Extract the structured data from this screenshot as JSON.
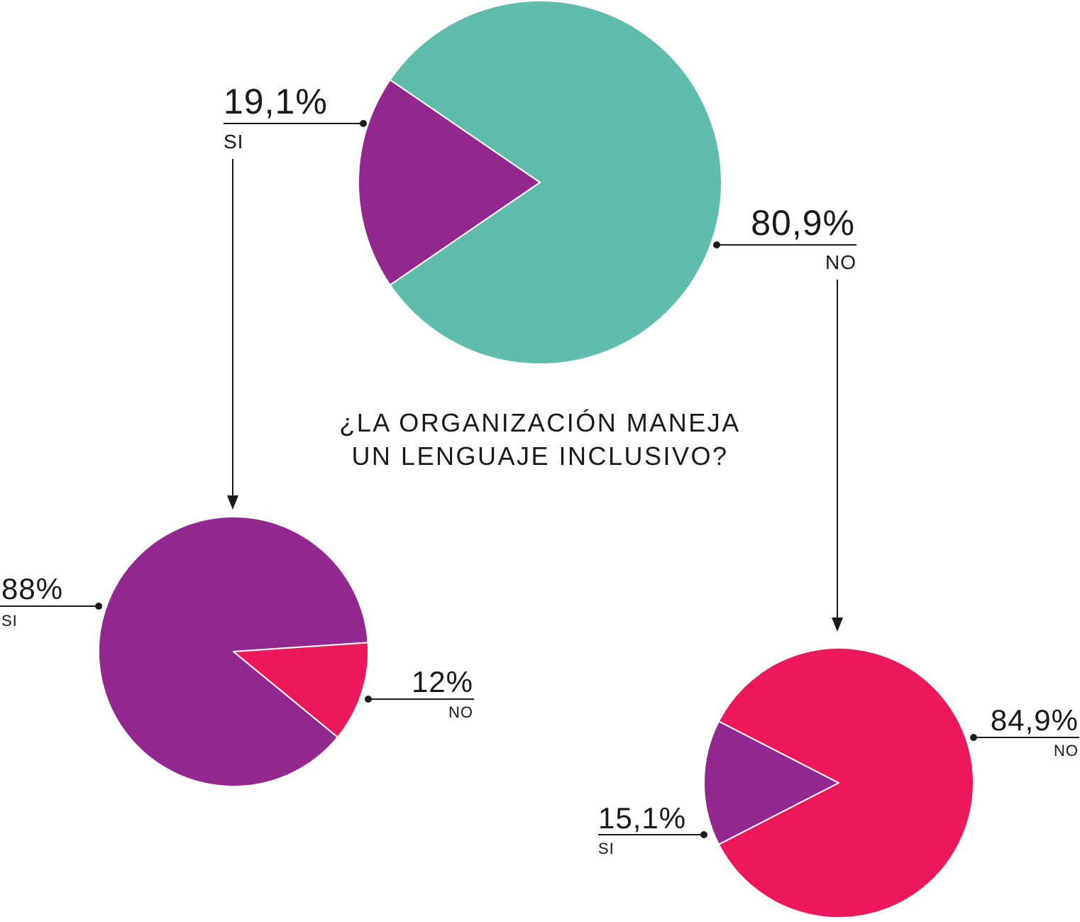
{
  "colors": {
    "teal": "#5fbcab",
    "purple": "#92278f",
    "pink": "#ed185b"
  },
  "question": {
    "line1": "¿LA ORGANIZACIÓN MANEJA",
    "line2": "UN LENGUAJE INCLUSIVO?"
  },
  "chart_data": [
    {
      "type": "pie",
      "slices": [
        {
          "label": "SI",
          "value": 19.1,
          "display": "19,1%",
          "color": "#92278f"
        },
        {
          "label": "NO",
          "value": 80.9,
          "display": "80,9%",
          "color": "#5fbcab"
        }
      ]
    },
    {
      "type": "pie",
      "slices": [
        {
          "label": "SI",
          "value": 88,
          "display": "88%",
          "color": "#92278f"
        },
        {
          "label": "NO",
          "value": 12,
          "display": "12%",
          "color": "#ed185b"
        }
      ]
    },
    {
      "type": "pie",
      "slices": [
        {
          "label": "SI",
          "value": 15.1,
          "display": "15,1%",
          "color": "#92278f"
        },
        {
          "label": "NO",
          "value": 84.9,
          "display": "84,9%",
          "color": "#ed185b"
        }
      ]
    }
  ]
}
